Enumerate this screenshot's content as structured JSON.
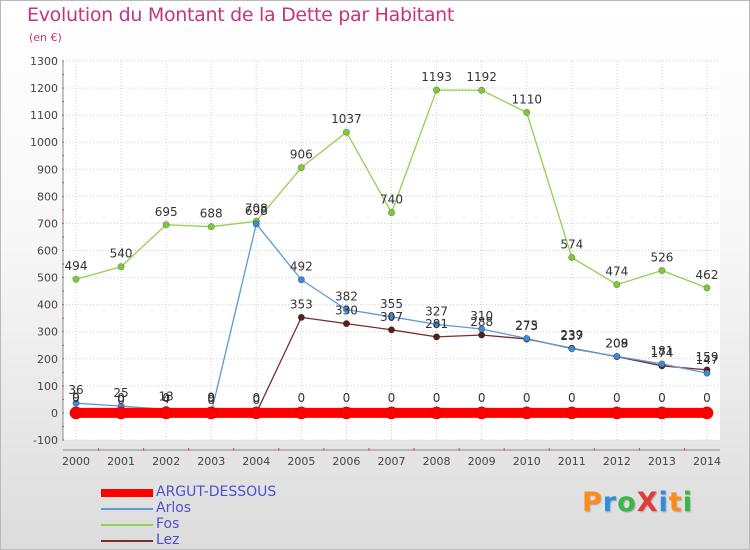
{
  "title": "Evolution du Montant de la Dette par Habitant",
  "subtitle": "(en €)",
  "brand": {
    "text": "ProXiti",
    "letters": [
      {
        "ch": "P",
        "color": "#ff8c1a"
      },
      {
        "ch": "r",
        "color": "#2e8ddf"
      },
      {
        "ch": "o",
        "color": "#39b54a"
      },
      {
        "ch": "X",
        "color": "#e33b3b"
      },
      {
        "ch": "i",
        "color": "#2e8ddf"
      },
      {
        "ch": "t",
        "color": "#ff8c1a"
      },
      {
        "ch": "i",
        "color": "#39b54a"
      }
    ]
  },
  "chart_data": {
    "type": "line",
    "x": [
      "2000",
      "2001",
      "2002",
      "2003",
      "2004",
      "2005",
      "2006",
      "2007",
      "2008",
      "2009",
      "2010",
      "2011",
      "2012",
      "2013",
      "2014"
    ],
    "ylim": [
      -100,
      1300
    ],
    "yticks": [
      -100,
      0,
      100,
      200,
      300,
      400,
      500,
      600,
      700,
      800,
      900,
      1000,
      1100,
      1200,
      1300
    ],
    "grid": true,
    "legend_position": "bottom-left",
    "series": [
      {
        "name": "ARGUT-DESSOUS",
        "color": "#ff0000",
        "values": [
          0,
          0,
          0,
          0,
          0,
          0,
          0,
          0,
          0,
          0,
          0,
          0,
          0,
          0,
          0
        ]
      },
      {
        "name": "Arlos",
        "color": "#5b9bd5",
        "values": [
          36,
          25,
          13,
          0,
          698,
          492,
          382,
          355,
          327,
          310,
          275,
          237,
          209,
          181,
          147
        ]
      },
      {
        "name": "Fos",
        "color": "#92d050",
        "values": [
          494,
          540,
          695,
          688,
          708,
          906,
          1037,
          740,
          1193,
          1192,
          1110,
          574,
          474,
          526,
          462
        ]
      },
      {
        "name": "Lez",
        "color": "#7b2c2c",
        "values": [
          9,
          0,
          4,
          9,
          0,
          353,
          330,
          307,
          281,
          288,
          273,
          239,
          208,
          174,
          159
        ]
      }
    ]
  }
}
